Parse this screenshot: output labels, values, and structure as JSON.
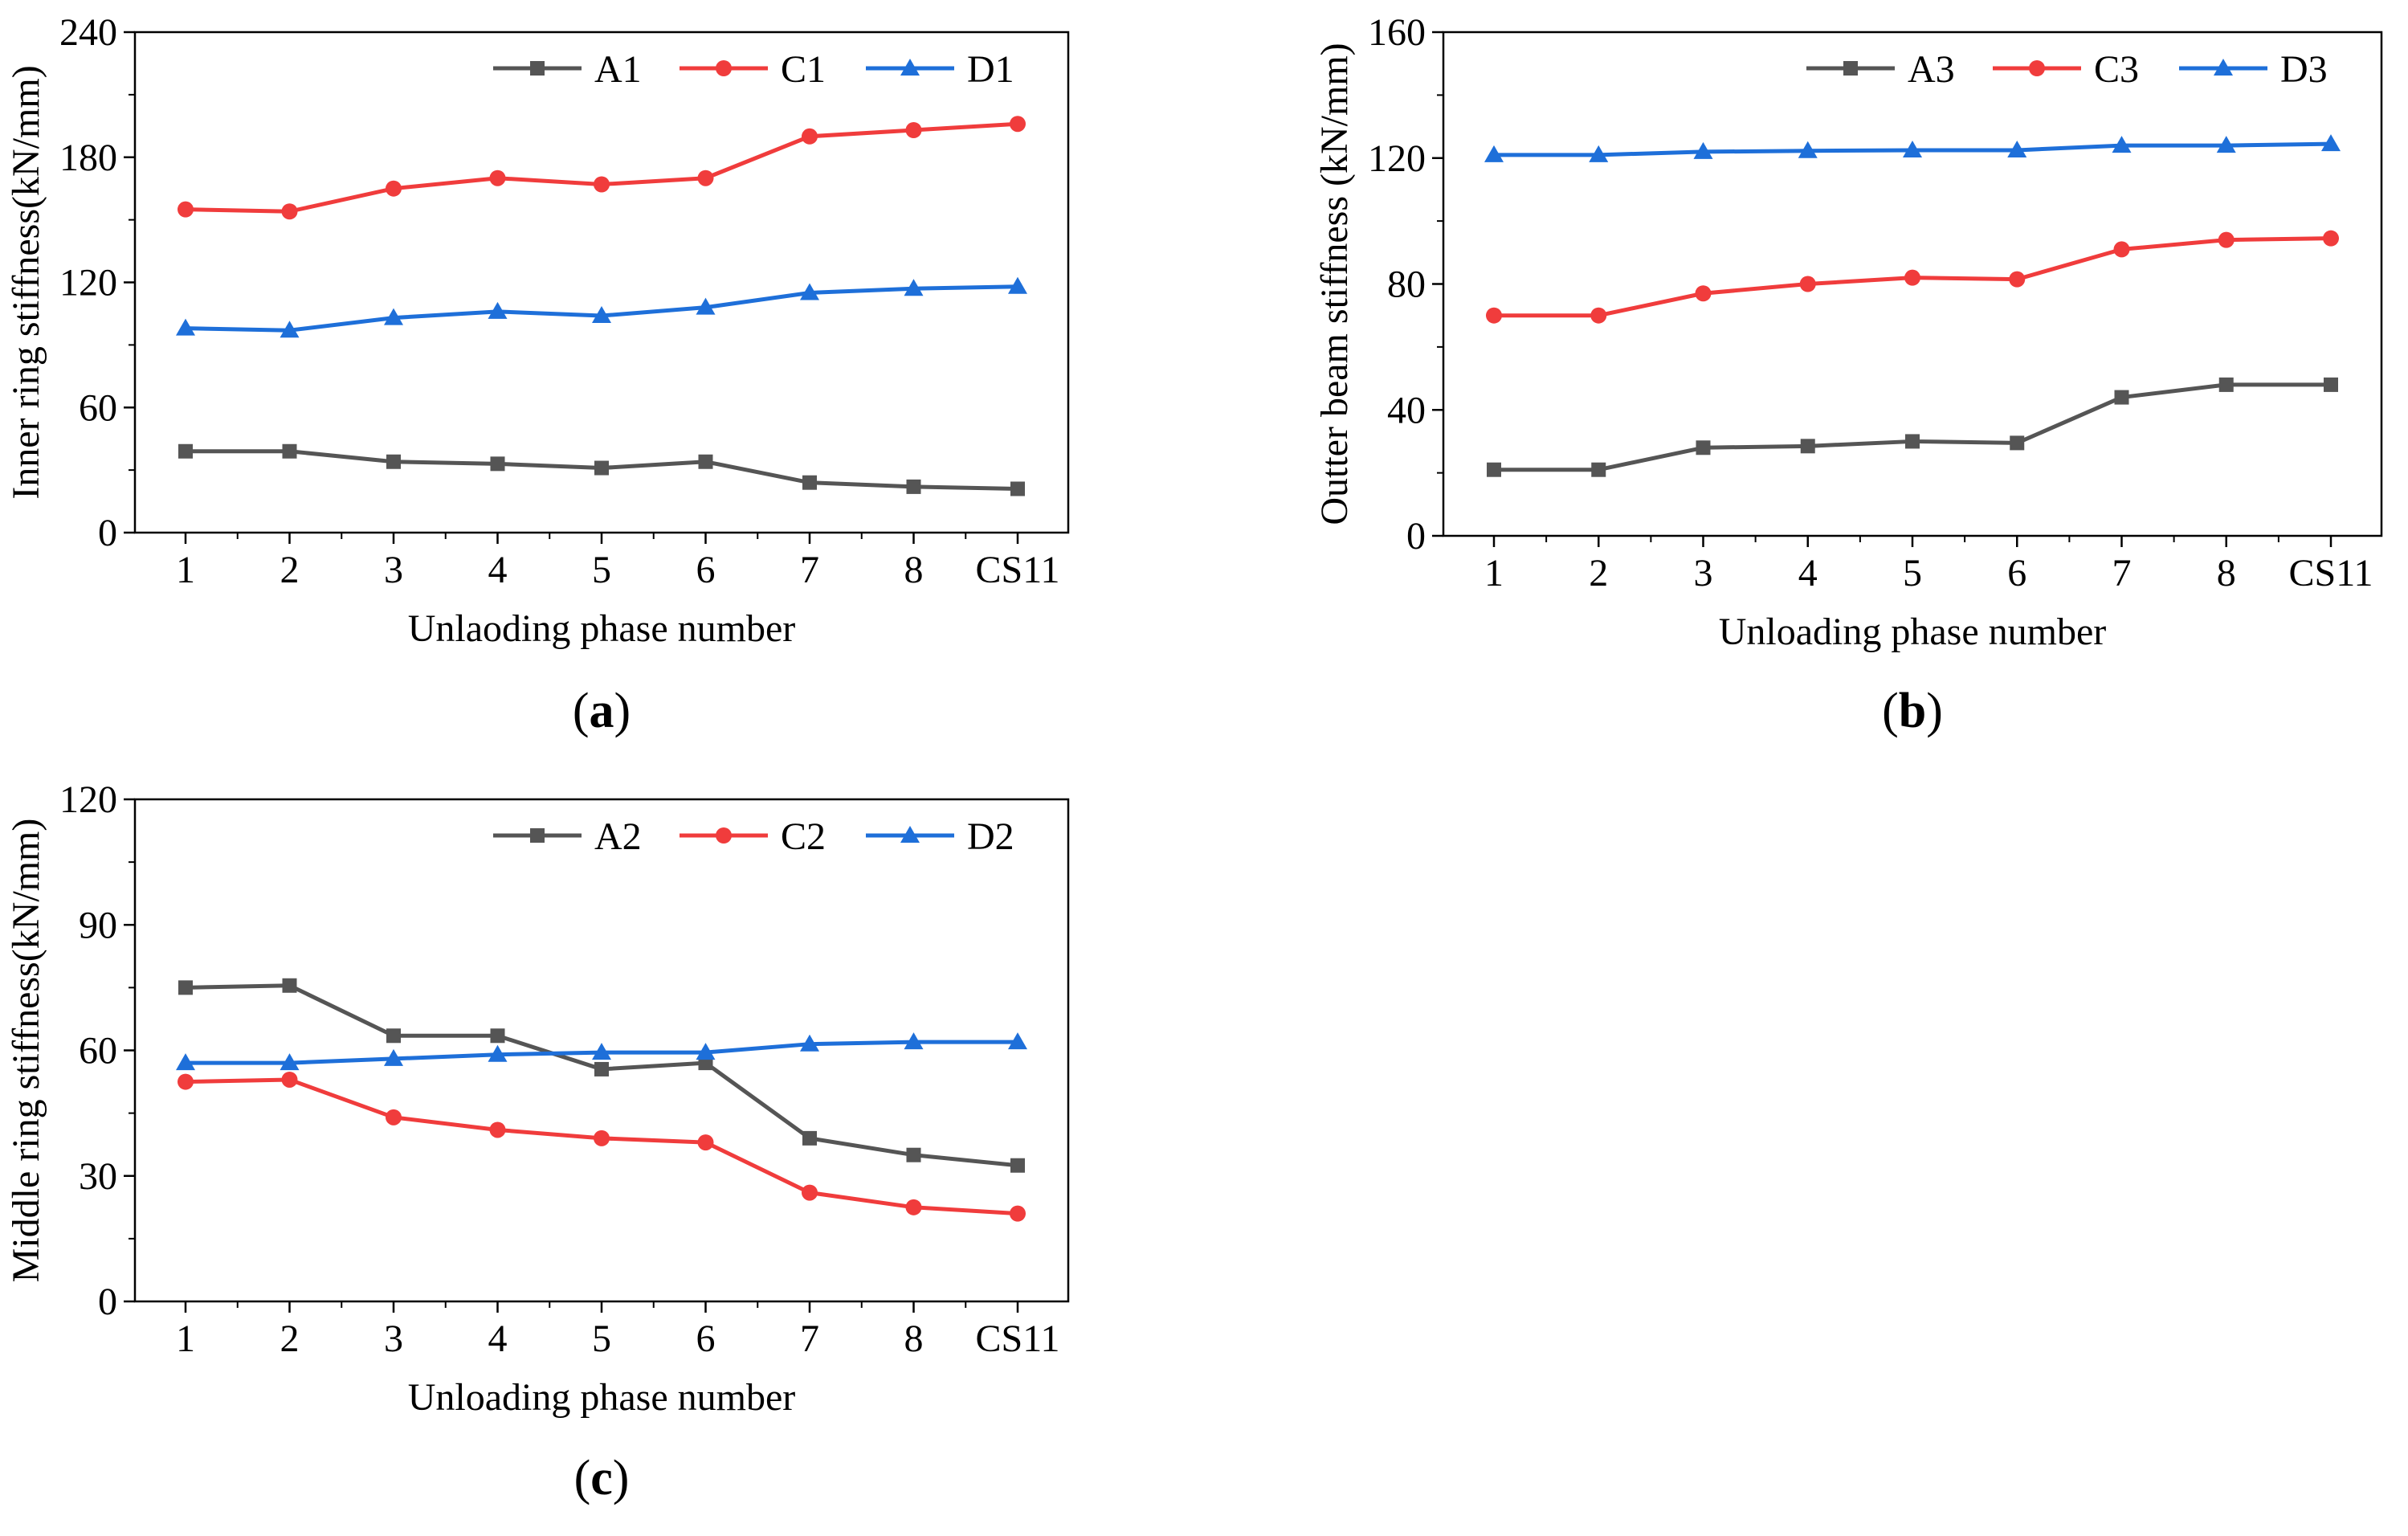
{
  "colors": {
    "series_A": "#555555",
    "series_C": "#f03c3c",
    "series_D": "#1e6fd9",
    "axis": "#000000"
  },
  "chart_data": [
    {
      "id": "a",
      "panel_label": {
        "open": "(",
        "letter": "a",
        "close": ")"
      },
      "type": "line",
      "categories": [
        "1",
        "2",
        "3",
        "4",
        "5",
        "6",
        "7",
        "8",
        "CS11"
      ],
      "xlabel": "Unlaoding phase number",
      "ylabel": "Inner ring stiffness(kN/mm)",
      "ylim": [
        0,
        240
      ],
      "yticks": [
        "0",
        "60",
        "120",
        "180",
        "240"
      ],
      "grid": false,
      "legend_position": "top-right",
      "series": [
        {
          "name": "A1",
          "marker": "square",
          "color": "#555555",
          "values": [
            39,
            39,
            34,
            33,
            31,
            34,
            24,
            22,
            21
          ]
        },
        {
          "name": "C1",
          "marker": "circle",
          "color": "#f03c3c",
          "values": [
            155,
            154,
            165,
            170,
            167,
            170,
            190,
            193,
            196
          ]
        },
        {
          "name": "D1",
          "marker": "triangle",
          "color": "#1e6fd9",
          "values": [
            98,
            97,
            103,
            106,
            104,
            108,
            115,
            117,
            118
          ]
        }
      ]
    },
    {
      "id": "b",
      "panel_label": {
        "open": "(",
        "letter": "b",
        "close": ")"
      },
      "type": "line",
      "categories": [
        "1",
        "2",
        "3",
        "4",
        "5",
        "6",
        "7",
        "8",
        "CS11"
      ],
      "xlabel": "Unloading phase number",
      "ylabel": "Outter beam stiffness (kN/mm)",
      "ylim": [
        0,
        160
      ],
      "yticks": [
        "0",
        "40",
        "80",
        "120",
        "160"
      ],
      "grid": false,
      "legend_position": "top-right",
      "series": [
        {
          "name": "A3",
          "marker": "square",
          "color": "#555555",
          "values": [
            21,
            21,
            28,
            28.5,
            30,
            29.5,
            44,
            48,
            48
          ]
        },
        {
          "name": "C3",
          "marker": "circle",
          "color": "#f03c3c",
          "values": [
            70,
            70,
            77,
            80,
            82,
            81.5,
            91,
            94,
            94.5
          ]
        },
        {
          "name": "D3",
          "marker": "triangle",
          "color": "#1e6fd9",
          "values": [
            121,
            121,
            122,
            122.3,
            122.5,
            122.5,
            124,
            124,
            124.5
          ]
        }
      ]
    },
    {
      "id": "c",
      "panel_label": {
        "open": "(",
        "letter": "c",
        "close": ")"
      },
      "type": "line",
      "categories": [
        "1",
        "2",
        "3",
        "4",
        "5",
        "6",
        "7",
        "8",
        "CS11"
      ],
      "xlabel": "Unloading phase number",
      "ylabel": "Middle ring stiffness(kN/mm)",
      "ylim": [
        0,
        120
      ],
      "yticks": [
        "0",
        "30",
        "60",
        "90",
        "120"
      ],
      "grid": false,
      "legend_position": "top-right",
      "series": [
        {
          "name": "A2",
          "marker": "square",
          "color": "#555555",
          "values": [
            75,
            75.5,
            63.5,
            63.5,
            55.5,
            57,
            39,
            35,
            32.5
          ]
        },
        {
          "name": "C2",
          "marker": "circle",
          "color": "#f03c3c",
          "values": [
            52.5,
            53,
            44,
            41,
            39,
            38,
            26,
            22.5,
            21
          ]
        },
        {
          "name": "D2",
          "marker": "triangle",
          "color": "#1e6fd9",
          "values": [
            57,
            57,
            58,
            59,
            59.5,
            59.5,
            61.5,
            62,
            62
          ]
        }
      ]
    }
  ]
}
